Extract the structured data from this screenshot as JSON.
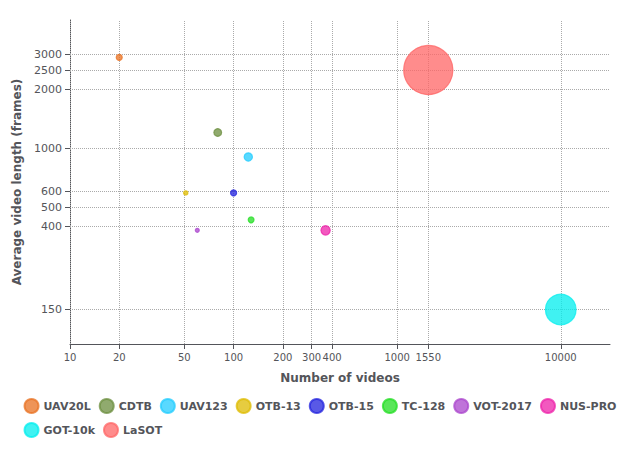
{
  "chart_data": {
    "type": "bubble",
    "xlabel": "Number of videos",
    "ylabel": "Average video length (frames)",
    "series": [
      {
        "name": "UAV20L",
        "color": "#E87020",
        "x": [
          20
        ],
        "values": [
          2900
        ],
        "size": [
          58000
        ]
      },
      {
        "name": "CDTB",
        "color": "#6B8E3E",
        "x": [
          80
        ],
        "values": [
          1200
        ],
        "size": [
          96000
        ]
      },
      {
        "name": "UAV123",
        "color": "#22CCFF",
        "x": [
          123
        ],
        "values": [
          900
        ],
        "size": [
          110700
        ]
      },
      {
        "name": "OTB-13",
        "color": "#DDBB00",
        "x": [
          51
        ],
        "values": [
          590
        ],
        "size": [
          30090
        ]
      },
      {
        "name": "OTB-15",
        "color": "#2222DD",
        "x": [
          100
        ],
        "values": [
          590
        ],
        "size": [
          59000
        ]
      },
      {
        "name": "TC-128",
        "color": "#22DD22",
        "x": [
          128
        ],
        "values": [
          430
        ],
        "size": [
          55040
        ]
      },
      {
        "name": "VOT-2017",
        "color": "#AA44CC",
        "x": [
          60
        ],
        "values": [
          380
        ],
        "size": [
          22800
        ]
      },
      {
        "name": "NUS-PRO",
        "color": "#EE22AA",
        "x": [
          365
        ],
        "values": [
          380
        ],
        "size": [
          138700
        ]
      },
      {
        "name": "GOT-10k",
        "color": "#00EEEE",
        "x": [
          10000
        ],
        "values": [
          150
        ],
        "size": [
          1500000
        ]
      },
      {
        "name": "LaSOT",
        "color": "#FF6666",
        "x": [
          1550
        ],
        "values": [
          2500
        ],
        "size": [
          3875000
        ]
      }
    ],
    "xlim": [
      10,
      20000
    ],
    "ylim": [
      100,
      4500
    ],
    "xticks": [
      10,
      20,
      50,
      100,
      200,
      300,
      400,
      1000,
      1550,
      10000
    ],
    "yticks": [
      150,
      400,
      500,
      600,
      1000,
      2000,
      2500,
      3000
    ],
    "log": true,
    "grid": true,
    "legend": "bottom"
  }
}
